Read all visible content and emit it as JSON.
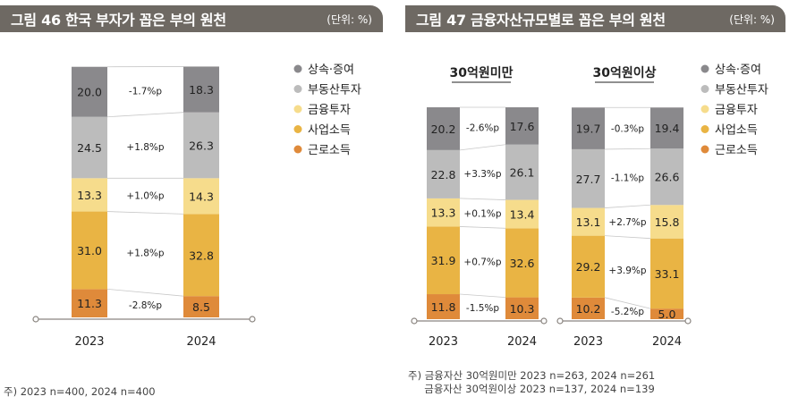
{
  "colors": {
    "inheritance": "#8a898c",
    "real_estate": "#bcbcbc",
    "financial": "#f6dc8c",
    "business": "#e9b444",
    "labor": "#df8a3a",
    "header_bg": "#6e6963",
    "axis": "#8a8580"
  },
  "legend": [
    {
      "key": "inheritance",
      "label": "상속·증여",
      "color": "#8a898c"
    },
    {
      "key": "real_estate",
      "label": "부동산투자",
      "color": "#bcbcbc"
    },
    {
      "key": "financial",
      "label": "금융투자",
      "color": "#f6dc8c"
    },
    {
      "key": "business",
      "label": "사업소득",
      "color": "#e9b444"
    },
    {
      "key": "labor",
      "label": "근로소득",
      "color": "#df8a3a"
    }
  ],
  "figure46": {
    "title": "그림 46  한국 부자가 꼽은 부의 원천",
    "unit": "(단위: %)",
    "note": "주) 2023 n=400, 2024 n=400"
  },
  "figure47": {
    "title": "그림 47  금융자산규모별로 꼽은 부의 원천",
    "unit": "(단위: %)",
    "note_line1": "주) 금융자산 30억원미만 2023 n=263, 2024 n=261",
    "note_line2": "     금융자산 30억원이상 2023 n=137, 2024 n=139"
  },
  "chart_data": [
    {
      "type": "bar",
      "stacked": true,
      "title": "한국 부자가 꼽은 부의 원천",
      "categories": [
        "2023",
        "2024"
      ],
      "series": [
        {
          "name": "근로소득",
          "key": "labor",
          "values": [
            11.3,
            8.5
          ],
          "diff": "-2.8%p"
        },
        {
          "name": "사업소득",
          "key": "business",
          "values": [
            31.0,
            32.8
          ],
          "diff": "+1.8%p"
        },
        {
          "name": "금융투자",
          "key": "financial",
          "values": [
            13.3,
            14.3
          ],
          "diff": "+1.0%p"
        },
        {
          "name": "부동산투자",
          "key": "real_estate",
          "values": [
            24.5,
            26.3
          ],
          "diff": "+1.8%p"
        },
        {
          "name": "상속·증여",
          "key": "inheritance",
          "values": [
            20.0,
            18.3
          ],
          "diff": "-1.7%p"
        }
      ],
      "ylim": [
        0,
        100
      ]
    },
    {
      "type": "bar",
      "stacked": true,
      "title": "30억원미만",
      "categories": [
        "2023",
        "2024"
      ],
      "series": [
        {
          "name": "근로소득",
          "key": "labor",
          "values": [
            11.8,
            10.3
          ],
          "diff": "-1.5%p"
        },
        {
          "name": "사업소득",
          "key": "business",
          "values": [
            31.9,
            32.6
          ],
          "diff": "+0.7%p"
        },
        {
          "name": "금융투자",
          "key": "financial",
          "values": [
            13.3,
            13.4
          ],
          "diff": "+0.1%p"
        },
        {
          "name": "부동산투자",
          "key": "real_estate",
          "values": [
            22.8,
            26.1
          ],
          "diff": "+3.3%p"
        },
        {
          "name": "상속·증여",
          "key": "inheritance",
          "values": [
            20.2,
            17.6
          ],
          "diff": "-2.6%p"
        }
      ],
      "ylim": [
        0,
        100
      ]
    },
    {
      "type": "bar",
      "stacked": true,
      "title": "30억원이상",
      "categories": [
        "2023",
        "2024"
      ],
      "series": [
        {
          "name": "근로소득",
          "key": "labor",
          "values": [
            10.2,
            5.0
          ],
          "diff": "-5.2%p"
        },
        {
          "name": "사업소득",
          "key": "business",
          "values": [
            29.2,
            33.1
          ],
          "diff": "+3.9%p"
        },
        {
          "name": "금융투자",
          "key": "financial",
          "values": [
            13.1,
            15.8
          ],
          "diff": "+2.7%p"
        },
        {
          "name": "부동산투자",
          "key": "real_estate",
          "values": [
            27.7,
            26.6
          ],
          "diff": "-1.1%p"
        },
        {
          "name": "상속·증여",
          "key": "inheritance",
          "values": [
            19.7,
            19.4
          ],
          "diff": "-0.3%p"
        }
      ],
      "ylim": [
        0,
        100
      ]
    }
  ]
}
